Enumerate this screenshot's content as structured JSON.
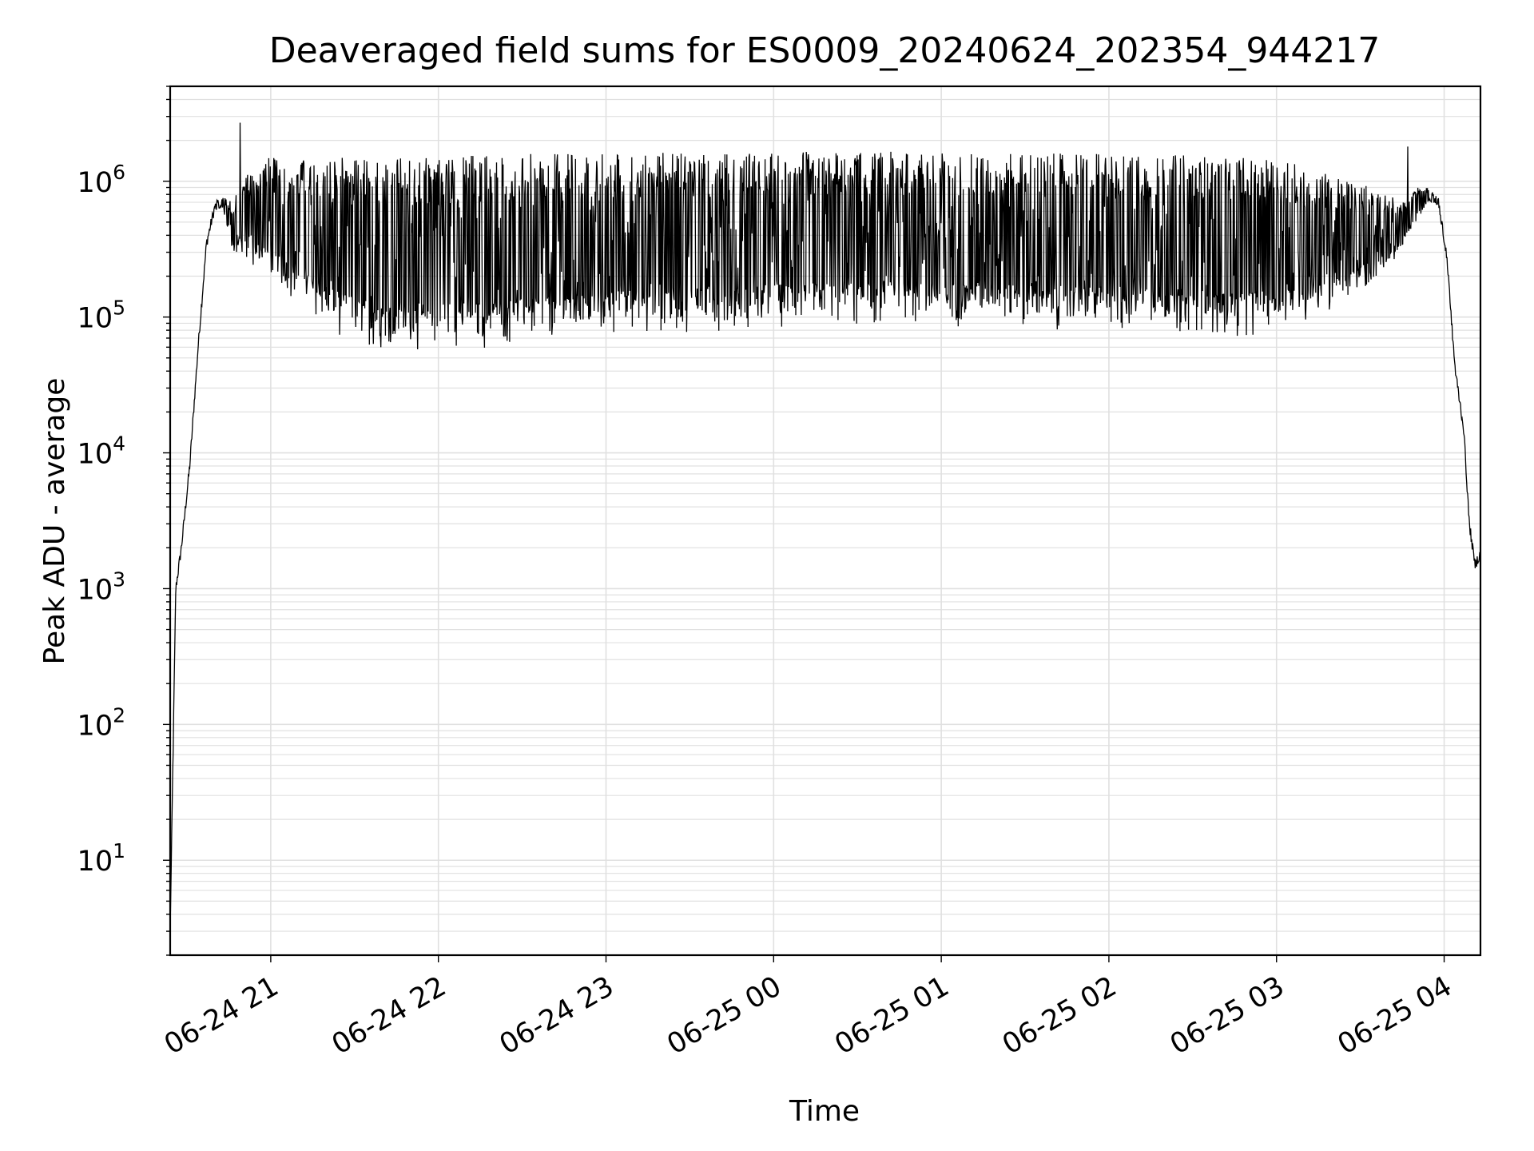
{
  "chart_data": {
    "type": "line",
    "title": "Deaveraged field sums for ES0009_20240624_202354_944217",
    "xlabel": "Time",
    "ylabel": "Peak ADU - average",
    "xscale": "time",
    "yscale": "log",
    "grid": true,
    "colors": {
      "line": "#000000",
      "grid": "#e0e0e0",
      "axes": "#000000"
    },
    "xlim": [
      "2024-06-24 20:24",
      "2024-06-25 04:13"
    ],
    "ylim": [
      2,
      5000000
    ],
    "x_ticks": [
      {
        "t": "2024-06-24 21:00",
        "label": "06-24 21"
      },
      {
        "t": "2024-06-24 22:00",
        "label": "06-24 22"
      },
      {
        "t": "2024-06-24 23:00",
        "label": "06-24 23"
      },
      {
        "t": "2024-06-25 00:00",
        "label": "06-25 00"
      },
      {
        "t": "2024-06-25 01:00",
        "label": "06-25 01"
      },
      {
        "t": "2024-06-25 02:00",
        "label": "06-25 02"
      },
      {
        "t": "2024-06-25 03:00",
        "label": "06-25 03"
      },
      {
        "t": "2024-06-25 04:00",
        "label": "06-25 04"
      }
    ],
    "y_ticks": [
      {
        "value": 10,
        "base": "10",
        "exp": "1"
      },
      {
        "value": 100,
        "base": "10",
        "exp": "2"
      },
      {
        "value": 1000,
        "base": "10",
        "exp": "3"
      },
      {
        "value": 10000,
        "base": "10",
        "exp": "4"
      },
      {
        "value": 100000,
        "base": "10",
        "exp": "5"
      },
      {
        "value": 1000000,
        "base": "10",
        "exp": "6"
      }
    ],
    "series": [
      {
        "envelope": {
          "x": [
            "2024-06-24 20:24",
            "2024-06-24 20:26",
            "2024-06-24 20:28",
            "2024-06-24 20:31",
            "2024-06-24 20:34",
            "2024-06-24 20:37",
            "2024-06-24 20:40",
            "2024-06-24 20:43",
            "2024-06-24 20:46",
            "2024-06-24 20:50",
            "2024-06-24 20:54",
            "2024-06-24 20:58",
            "2024-06-24 21:05",
            "2024-06-24 21:15",
            "2024-06-24 21:30",
            "2024-06-24 21:50",
            "2024-06-24 22:15",
            "2024-06-24 22:45",
            "2024-06-24 23:15",
            "2024-06-24 23:45",
            "2024-06-25 00:15",
            "2024-06-25 00:45",
            "2024-06-25 01:15",
            "2024-06-25 01:45",
            "2024-06-25 02:15",
            "2024-06-25 02:45",
            "2024-06-25 03:05",
            "2024-06-25 03:20",
            "2024-06-25 03:35",
            "2024-06-25 03:45",
            "2024-06-25 03:50",
            "2024-06-25 03:54",
            "2024-06-25 03:58",
            "2024-06-25 04:01",
            "2024-06-25 04:04",
            "2024-06-25 04:07",
            "2024-06-25 04:09",
            "2024-06-25 04:11",
            "2024-06-25 04:13"
          ],
          "low": [
            3,
            1000,
            2000,
            8000,
            60000,
            350000,
            650000,
            600000,
            280000,
            260000,
            230000,
            200000,
            150000,
            100000,
            60000,
            55000,
            55000,
            65000,
            75000,
            80000,
            85000,
            85000,
            85000,
            80000,
            80000,
            70000,
            80000,
            100000,
            180000,
            300000,
            500000,
            700000,
            650000,
            250000,
            40000,
            15000,
            3000,
            1500,
            1800
          ],
          "high": [
            3,
            1000,
            2000,
            8000,
            60000,
            350000,
            700000,
            800000,
            700000,
            1000000,
            1400000,
            1500000,
            1500000,
            1500000,
            1500000,
            1500000,
            1600000,
            1600000,
            1650000,
            1650000,
            1650000,
            1650000,
            1600000,
            1600000,
            1600000,
            1500000,
            1400000,
            1100000,
            900000,
            700000,
            900000,
            900000,
            750000,
            300000,
            40000,
            15000,
            3000,
            1500,
            1800
          ]
        },
        "spikes": [
          {
            "t": "2024-06-24 20:49",
            "value": 2700000
          },
          {
            "t": "2024-06-25 03:47",
            "value": 1800000
          }
        ]
      }
    ]
  }
}
